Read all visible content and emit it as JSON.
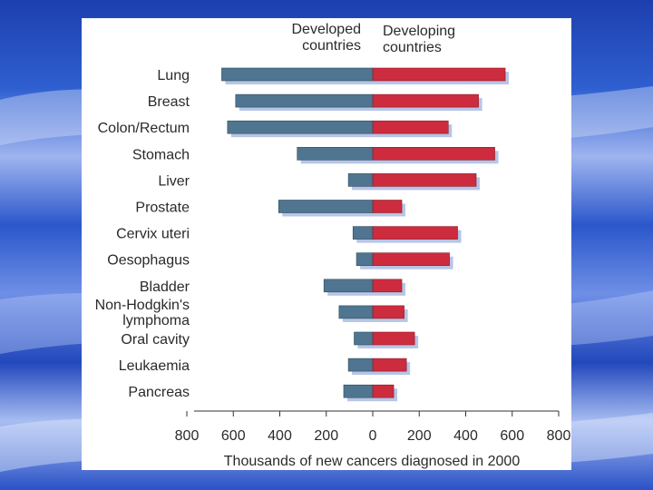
{
  "chart_data": {
    "type": "bar",
    "orientation": "horizontal-diverging",
    "title": "",
    "series": [
      {
        "name": "Developed countries",
        "color": "#4f7590",
        "values": [
          650,
          590,
          625,
          325,
          105,
          405,
          85,
          70,
          210,
          145,
          80,
          105,
          125
        ]
      },
      {
        "name": "Developing countries",
        "color": "#cc2c3e",
        "values": [
          570,
          455,
          325,
          525,
          445,
          125,
          365,
          330,
          125,
          135,
          180,
          145,
          90
        ]
      }
    ],
    "categories": [
      "Lung",
      "Breast",
      "Colon/Rectum",
      "Stomach",
      "Liver",
      "Prostate",
      "Cervix uteri",
      "Oesophagus",
      "Bladder",
      "Non-Hodgkin's lymphoma",
      "Oral cavity",
      "Leukaemia",
      "Pancreas"
    ],
    "legend": {
      "left": [
        "Developed",
        "countries"
      ],
      "right": [
        "Developing",
        "countries"
      ]
    },
    "xticks": [
      "800",
      "600",
      "400",
      "200",
      "0",
      "200",
      "400",
      "600",
      "800"
    ],
    "xlim": [
      -800,
      800
    ],
    "xlabel": "Thousands of new cancers diagnosed in 2000",
    "ylabel": ""
  }
}
